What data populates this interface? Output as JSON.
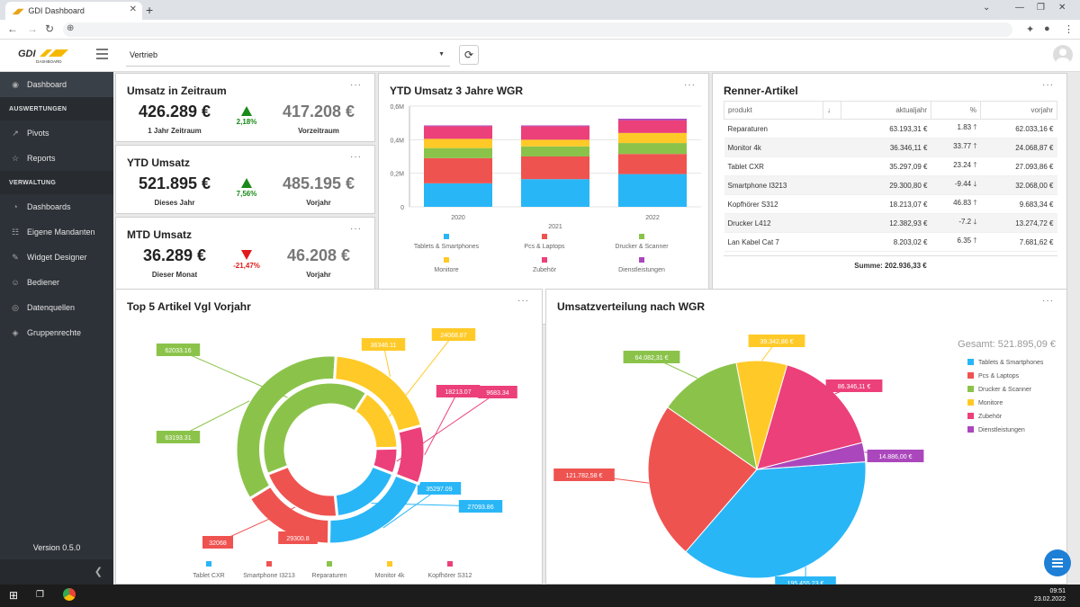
{
  "browser": {
    "tab_title": "GDI Dashboard"
  },
  "topbar": {
    "logo_text": "GDI",
    "logo_sub": "DASHBOARD",
    "selected_dashboard": "Vertrieb"
  },
  "sidebar": {
    "dashboard": "Dashboard",
    "section_auswertungen": "AUSWERTUNGEN",
    "pivots": "Pivots",
    "reports": "Reports",
    "section_verwaltung": "VERWALTUNG",
    "dashboards": "Dashboards",
    "mandanten": "Eigene Mandanten",
    "widget_designer": "Widget Designer",
    "bediener": "Bediener",
    "datenquellen": "Datenquellen",
    "gruppenrechte": "Gruppenrechte",
    "version": "Version 0.5.0"
  },
  "kpi_zeitraum": {
    "title": "Umsatz in Zeitraum",
    "value": "426.289 €",
    "value_label": "1 Jahr Zeitraum",
    "pct": "2,18%",
    "prev": "417.208 €",
    "prev_label": "Vorzeitraum",
    "trend_color": "#1a8a1a"
  },
  "kpi_ytd": {
    "title": "YTD Umsatz",
    "value": "521.895 €",
    "value_label": "Dieses Jahr",
    "pct": "7,56%",
    "prev": "485.195 €",
    "prev_label": "Vorjahr",
    "trend_color": "#1a8a1a"
  },
  "kpi_mtd": {
    "title": "MTD Umsatz",
    "value": "36.289 €",
    "value_label": "Dieser Monat",
    "pct": "-21,47%",
    "prev": "46.208 €",
    "prev_label": "Vorjahr",
    "trend_color": "#e21b1b"
  },
  "ytd_chart_title": "YTD Umsatz 3 Jahre WGR",
  "renner": {
    "title": "Renner-Artikel",
    "headers": [
      "produkt",
      "↓",
      "aktualjahr",
      "%",
      "vorjahr"
    ],
    "rows": [
      {
        "produkt": "Reparaturen",
        "aktual": "63.193,31 €",
        "pct": "1.83",
        "dir": "up",
        "vorjahr": "62.033,16 €"
      },
      {
        "produkt": "Monitor 4k",
        "aktual": "36.346,11 €",
        "pct": "33.77",
        "dir": "up",
        "vorjahr": "24.068,87 €"
      },
      {
        "produkt": "Tablet CXR",
        "aktual": "35.297,09 €",
        "pct": "23.24",
        "dir": "up",
        "vorjahr": "27.093,86 €"
      },
      {
        "produkt": "Smartphone I3213",
        "aktual": "29.300,80 €",
        "pct": "-9.44",
        "dir": "down",
        "vorjahr": "32.068,00 €"
      },
      {
        "produkt": "Kopfhörer S312",
        "aktual": "18.213,07 €",
        "pct": "46.83",
        "dir": "up",
        "vorjahr": "9.683,34 €"
      },
      {
        "produkt": "Drucker L412",
        "aktual": "12.382,93 €",
        "pct": "-7.2",
        "dir": "down",
        "vorjahr": "13.274,72 €"
      },
      {
        "produkt": "Lan Kabel Cat 7",
        "aktual": "8.203,02 €",
        "pct": "6.35",
        "dir": "up",
        "vorjahr": "7.681,62 €"
      }
    ],
    "summe": "Summe: 202.936,33 €"
  },
  "top5_title": "Top 5 Artikel Vgl Vorjahr",
  "pie_title": "Umsatzverteilung nach WGR",
  "taskbar": {
    "time": "09:51",
    "date": "23.02.2022"
  },
  "chart_data": [
    {
      "type": "bar",
      "stacked": true,
      "categories": [
        "2020",
        "2021",
        "2022"
      ],
      "ylim": [
        0,
        600000
      ],
      "ytick_labels": [
        "0",
        "0,2M",
        "0,4M",
        "0,6M"
      ],
      "series": [
        {
          "name": "Tablets & Smartphones",
          "color": "#29b6f6",
          "values": [
            140000,
            165000,
            195000
          ]
        },
        {
          "name": "Pcs & Laptops",
          "color": "#ef5350",
          "values": [
            150000,
            135000,
            120000
          ]
        },
        {
          "name": "Drucker & Scanner",
          "color": "#8bc34a",
          "values": [
            60000,
            60000,
            65000
          ]
        },
        {
          "name": "Monitore",
          "color": "#ffca28",
          "values": [
            55000,
            40000,
            60000
          ]
        },
        {
          "name": "Zubehör",
          "color": "#ec407a",
          "values": [
            75000,
            80000,
            75000
          ]
        },
        {
          "name": "Dienstleistungen",
          "color": "#ab47bc",
          "values": [
            5000,
            5000,
            10000
          ]
        }
      ]
    },
    {
      "type": "pie",
      "donut": true,
      "series": [
        {
          "name": "Aktualjahr",
          "values": [
            35297.09,
            29300.8,
            63193.31,
            36346.11,
            18213.07
          ]
        },
        {
          "name": "Vorjahr",
          "values": [
            27093.86,
            32068,
            62033.16,
            24068.87,
            9683.34
          ]
        }
      ],
      "categories": [
        "Tablet CXR",
        "Smartphone I3213",
        "Reparaturen",
        "Monitor 4k",
        "Kopfhörer S312"
      ],
      "colors": [
        "#29b6f6",
        "#ef5350",
        "#8bc34a",
        "#ffca28",
        "#ec407a"
      ],
      "outer_labels": [
        "35297.09",
        "29300.8",
        "63193.31",
        "36346.11",
        "18213.07"
      ],
      "inner_labels": [
        "27093.86",
        "32068",
        "62033.16",
        "24068.87",
        "9683.34"
      ]
    },
    {
      "type": "pie",
      "total_label": "Gesamt: 521.895,09 €",
      "categories": [
        "Tablets & Smartphones",
        "Pcs & Laptops",
        "Drucker & Scanner",
        "Monitore",
        "Zubehör",
        "Dienstleistungen"
      ],
      "values": [
        195455.23,
        121782.58,
        64082.31,
        39342.86,
        86346.11,
        14886.0
      ],
      "labels": [
        "195.455,23 €",
        "121.782,58 €",
        "64.082,31 €",
        "39.342,86 €",
        "86.346,11 €",
        "14.886,00 €"
      ],
      "colors": [
        "#29b6f6",
        "#ef5350",
        "#8bc34a",
        "#ffca28",
        "#ec407a",
        "#ab47bc"
      ]
    }
  ]
}
